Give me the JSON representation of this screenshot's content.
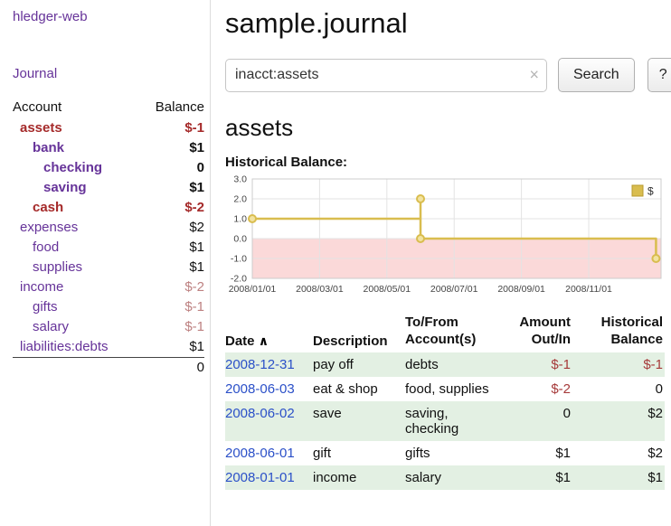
{
  "sidebar": {
    "app_title": "hledger-web",
    "nav": {
      "journal": "Journal"
    },
    "accounts_table": {
      "headers": {
        "account": "Account",
        "balance": "Balance"
      },
      "rows": [
        {
          "name": "assets",
          "balance": "$-1"
        },
        {
          "name": "bank",
          "balance": "$1"
        },
        {
          "name": "checking",
          "balance": "0"
        },
        {
          "name": "saving",
          "balance": "$1"
        },
        {
          "name": "cash",
          "balance": "$-2"
        },
        {
          "name": "expenses",
          "balance": "$2"
        },
        {
          "name": "food",
          "balance": "$1"
        },
        {
          "name": "supplies",
          "balance": "$1"
        },
        {
          "name": "income",
          "balance": "$-2"
        },
        {
          "name": "gifts",
          "balance": "$-1"
        },
        {
          "name": "salary",
          "balance": "$-1"
        },
        {
          "name": "liabilities:debts",
          "balance": "$1"
        }
      ],
      "total": "0"
    }
  },
  "header": {
    "title": "sample.journal",
    "search": {
      "value": "inacct:assets",
      "clear_icon": "×",
      "button": "Search",
      "help_button": "?"
    }
  },
  "main": {
    "account_heading": "assets",
    "chart_heading": "Historical Balance:"
  },
  "chart_data": {
    "type": "line",
    "title": "Historical Balance",
    "legend_label": "$",
    "x_domain": [
      0,
      12.15
    ],
    "y_domain": [
      -2,
      3
    ],
    "x_ticks": [
      {
        "v": 0,
        "label": "2008/01/01"
      },
      {
        "v": 2,
        "label": "2008/03/01"
      },
      {
        "v": 4,
        "label": "2008/05/01"
      },
      {
        "v": 6,
        "label": "2008/07/01"
      },
      {
        "v": 8,
        "label": "2008/09/01"
      },
      {
        "v": 10,
        "label": "2008/11/01"
      }
    ],
    "y_ticks": [
      {
        "v": 3,
        "label": "3.0"
      },
      {
        "v": 2,
        "label": "2.0"
      },
      {
        "v": 1,
        "label": "1.0"
      },
      {
        "v": 0,
        "label": "0.0"
      },
      {
        "v": -1,
        "label": "-1.0"
      },
      {
        "v": -2,
        "label": "-2.0"
      }
    ],
    "series": [
      {
        "name": "$",
        "points": [
          [
            0,
            1
          ],
          [
            5,
            1
          ],
          [
            5,
            2
          ],
          [
            5,
            0
          ],
          [
            12,
            0
          ],
          [
            12,
            -1
          ]
        ],
        "markers": [
          [
            0,
            1
          ],
          [
            5,
            2
          ],
          [
            5,
            0
          ],
          [
            12,
            -1
          ]
        ]
      }
    ],
    "line_color": "#d9bd4f",
    "marker_fill": "#f2e3a0",
    "negative_fill": "#fbd9d9",
    "grid_color": "#e3e3e3",
    "legend_swatch_border": "#b89a2e"
  },
  "register": {
    "headers": {
      "date": "Date",
      "sort_indicator": "∧",
      "description": "Description",
      "account_line1": "To/From",
      "account_line2": "Account(s)",
      "amount_line1": "Amount",
      "amount_line2": "Out/In",
      "balance_line1": "Historical",
      "balance_line2": "Balance"
    },
    "rows": [
      {
        "date": "2008-12-31",
        "description": "pay off",
        "accounts": "debts",
        "amount": "$-1",
        "balance": "$-1"
      },
      {
        "date": "2008-06-03",
        "description": "eat & shop",
        "accounts": "food, supplies",
        "amount": "$-2",
        "balance": "0"
      },
      {
        "date": "2008-06-02",
        "description": "save",
        "accounts": "saving, checking",
        "amount": "0",
        "balance": "$2"
      },
      {
        "date": "2008-06-01",
        "description": "gift",
        "accounts": "gifts",
        "amount": "$1",
        "balance": "$2"
      },
      {
        "date": "2008-01-01",
        "description": "income",
        "accounts": "salary",
        "amount": "$1",
        "balance": "$1"
      }
    ]
  }
}
